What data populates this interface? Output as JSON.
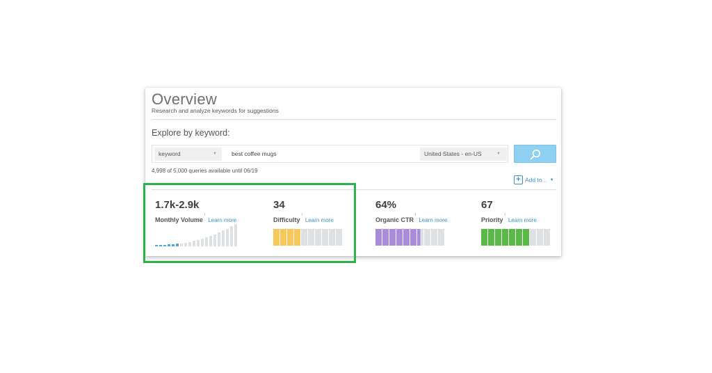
{
  "header": {
    "title": "Overview",
    "subtitle": "Research and analyze keywords for suggestions"
  },
  "explore": {
    "label": "Explore by keyword:",
    "type_select": "keyword",
    "query": "best coffee mugs",
    "locale_select": "United States - en-US"
  },
  "quota_text": "4,998 of 5,000 queries available until 06/19",
  "add_to_label": "Add to...",
  "metrics": [
    {
      "value": "1.7k-2.9k",
      "label": "Monthly Volume",
      "info": "i",
      "learn": "Learn more"
    },
    {
      "value": "34",
      "label": "Difficulty",
      "info": "i",
      "learn": "Learn more"
    },
    {
      "value": "64%",
      "label": "Organic CTR",
      "info": "i",
      "learn": "Learn more"
    },
    {
      "value": "67",
      "label": "Priority",
      "info": "i",
      "learn": "Learn more"
    }
  ],
  "score_bars": {
    "segments": 10,
    "difficulty": {
      "filled_segments": 4,
      "color": "#f7c85a"
    },
    "organic_ctr": {
      "filled_segments": 6.5,
      "color": "#a98bdc"
    },
    "priority": {
      "filled_segments": 7,
      "color": "#58b947"
    },
    "empty_color": "#dde1e4"
  },
  "volume_chart": {
    "bars": 20,
    "highlighted_bars": 6,
    "highlight_color": "#4aa7e0",
    "bar_color": "#dde1e4",
    "level": 0.3
  },
  "highlight_color": "#2db34a"
}
